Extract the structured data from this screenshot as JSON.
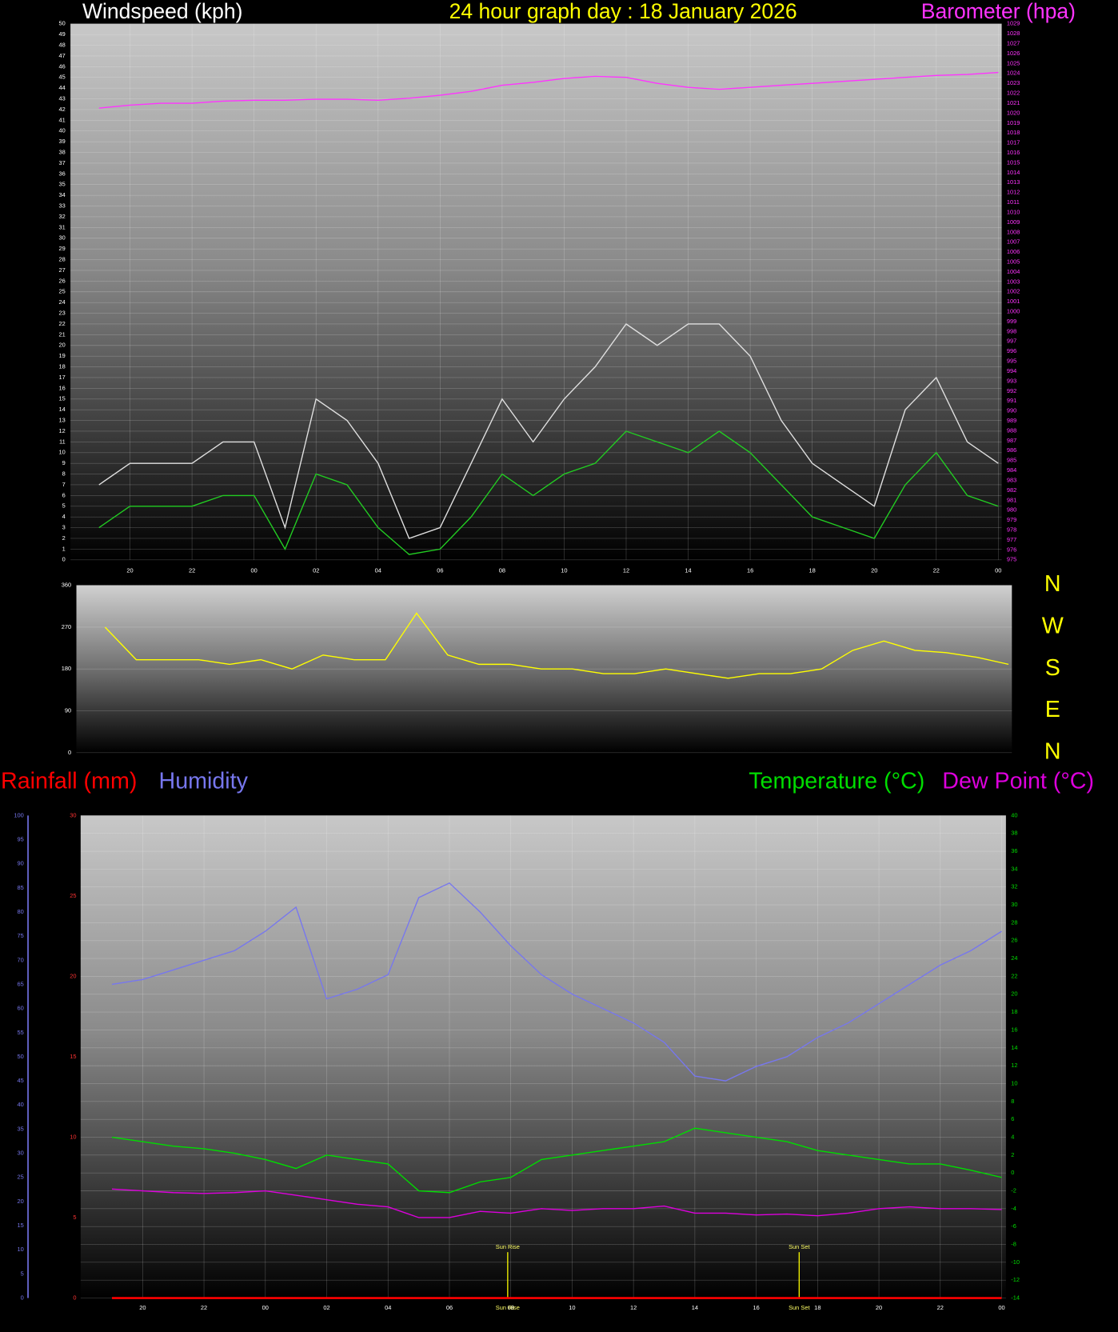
{
  "chart_data": [
    {
      "type": "line",
      "title": "24 hour graph day : 18 January 2026",
      "x": [
        19,
        20,
        21,
        22,
        23,
        24,
        25,
        26,
        27,
        28,
        29,
        30,
        31,
        32,
        33,
        34,
        35,
        36,
        37,
        38,
        39,
        40,
        41,
        42,
        43,
        44,
        45,
        46,
        47,
        48
      ],
      "xlim": [
        18.08,
        48.11
      ],
      "xticks": [
        20,
        22,
        {
          "value": 24,
          "label": "00"
        },
        {
          "value": 26,
          "label": "02"
        },
        {
          "value": 28,
          "label": "04"
        },
        {
          "value": 30,
          "label": "06"
        },
        {
          "value": 32,
          "label": "08"
        },
        {
          "value": 34,
          "label": "10"
        },
        {
          "value": 36,
          "label": "12"
        },
        {
          "value": 38,
          "label": "14"
        },
        {
          "value": 40,
          "label": "16"
        },
        {
          "value": 42,
          "label": "18"
        },
        {
          "value": 44,
          "label": "20"
        },
        {
          "value": 46,
          "label": "22"
        },
        {
          "value": 48,
          "label": "00"
        }
      ],
      "ylim": [
        0,
        50
      ],
      "yticks": [
        0,
        1,
        2,
        3,
        4,
        5,
        6,
        7,
        8,
        9,
        10,
        11,
        12,
        13,
        14,
        15,
        16,
        17,
        18,
        19,
        20,
        21,
        22,
        23,
        24,
        25,
        26,
        27,
        28,
        29,
        30,
        31,
        32,
        33,
        34,
        35,
        36,
        37,
        38,
        39,
        40,
        41,
        42,
        43,
        44,
        45,
        46,
        47,
        48,
        49,
        50
      ],
      "y2lim": [
        975,
        1029
      ],
      "y2ticks": [
        975,
        976,
        977,
        978,
        979,
        980,
        981,
        982,
        983,
        984,
        985,
        986,
        987,
        988,
        989,
        990,
        991,
        992,
        993,
        994,
        995,
        996,
        997,
        998,
        999,
        1000,
        1001,
        1002,
        1003,
        1004,
        1005,
        1006,
        1007,
        1008,
        1009,
        1010,
        1011,
        1012,
        1013,
        1014,
        1015,
        1016,
        1017,
        1018,
        1019,
        1020,
        1021,
        1022,
        1023,
        1024,
        1025,
        1026,
        1027,
        1028,
        1029
      ],
      "grid": true,
      "series": [
        {
          "name": "Windspeed (kph)",
          "color": "#e0e0e0",
          "values": [
            7,
            9,
            9,
            9,
            11,
            11,
            3,
            15,
            13,
            9,
            2,
            3,
            9,
            15,
            11,
            15,
            18,
            22,
            20,
            22,
            22,
            19,
            13,
            9,
            7,
            5,
            14,
            17,
            11,
            9
          ]
        },
        {
          "color": "#22cc22",
          "values": [
            3,
            5,
            5,
            5,
            6,
            6,
            1,
            8,
            7,
            3,
            0.5,
            1,
            4,
            8,
            6,
            8,
            9,
            12,
            11,
            10,
            12,
            10,
            7,
            4,
            3,
            2,
            7,
            10,
            6,
            5
          ]
        },
        {
          "name": "Barometer (hpa)",
          "color": "#ff33ff",
          "axis": "y2",
          "values": [
            1020.5,
            1020.8,
            1021,
            1021,
            1021.2,
            1021.3,
            1021.3,
            1021.4,
            1021.4,
            1021.3,
            1021.5,
            1021.8,
            1022.2,
            1022.8,
            1023.1,
            1023.5,
            1023.7,
            1023.6,
            1023,
            1022.6,
            1022.4,
            1022.6,
            1022.8,
            1023,
            1023.2,
            1023.4,
            1023.6,
            1023.8,
            1023.9,
            1024.1
          ]
        }
      ]
    },
    {
      "type": "line",
      "x": [
        19,
        20,
        21,
        22,
        23,
        24,
        25,
        26,
        27,
        28,
        29,
        30,
        31,
        32,
        33,
        34,
        35,
        36,
        37,
        38,
        39,
        40,
        41,
        42,
        43,
        44,
        45,
        46,
        47,
        48
      ],
      "xlim": [
        18.08,
        48.11
      ],
      "ylim": [
        0,
        360
      ],
      "yticks": [
        0,
        90,
        180,
        270,
        360
      ],
      "direction_labels": [
        "N",
        "E",
        "S",
        "W",
        "N"
      ],
      "grid": true,
      "series": [
        {
          "color": "#ffff00",
          "values": [
            270,
            200,
            200,
            200,
            190,
            200,
            180,
            210,
            200,
            200,
            300,
            210,
            190,
            190,
            180,
            180,
            170,
            170,
            180,
            170,
            160,
            170,
            170,
            180,
            220,
            240,
            220,
            215,
            205,
            190
          ]
        }
      ]
    },
    {
      "type": "line",
      "x": [
        19,
        20,
        21,
        22,
        23,
        24,
        25,
        26,
        27,
        28,
        29,
        30,
        31,
        32,
        33,
        34,
        35,
        36,
        37,
        38,
        39,
        40,
        41,
        42,
        43,
        44,
        45,
        46,
        47,
        48
      ],
      "xlim": [
        17.98,
        48.14
      ],
      "xticks": [
        20,
        22,
        {
          "value": 24,
          "label": "00"
        },
        {
          "value": 26,
          "label": "02"
        },
        {
          "value": 28,
          "label": "04"
        },
        {
          "value": 30,
          "label": "06"
        },
        {
          "value": 32,
          "label": "08"
        },
        {
          "value": 34,
          "label": "10"
        },
        {
          "value": 36,
          "label": "12"
        },
        {
          "value": 38,
          "label": "14"
        },
        {
          "value": 40,
          "label": "16"
        },
        {
          "value": 42,
          "label": "18"
        },
        {
          "value": 44,
          "label": "20"
        },
        {
          "value": 46,
          "label": "22"
        },
        {
          "value": 48,
          "label": "00"
        }
      ],
      "ylim": [
        0,
        30
      ],
      "yticks": [
        0,
        5,
        10,
        15,
        20,
        25,
        30
      ],
      "y3lim": [
        0,
        100
      ],
      "y3ticks": [
        0,
        5,
        10,
        15,
        20,
        25,
        30,
        35,
        40,
        45,
        50,
        55,
        60,
        65,
        70,
        75,
        80,
        85,
        90,
        95,
        100
      ],
      "y2lim": [
        -14,
        40
      ],
      "y2ticks": [
        -14,
        -12,
        -10,
        -8,
        -6,
        -4,
        -2,
        0,
        2,
        4,
        6,
        8,
        10,
        12,
        14,
        16,
        18,
        20,
        22,
        24,
        26,
        28,
        30,
        32,
        34,
        36,
        38,
        40
      ],
      "grid": true,
      "annotations": [
        {
          "text": "Sun Rise",
          "x": 31.9
        },
        {
          "text": "Sun Set",
          "x": 41.4
        }
      ],
      "series": [
        {
          "name": "Rainfall (mm)",
          "color": "#ff0000",
          "values": [
            0,
            0,
            0,
            0,
            0,
            0,
            0,
            0,
            0,
            0,
            0,
            0,
            0,
            0,
            0,
            0,
            0,
            0,
            0,
            0,
            0,
            0,
            0,
            0,
            0,
            0,
            0,
            0,
            0,
            0
          ]
        },
        {
          "name": "Humidity",
          "color": "#7777ee",
          "axis": "y3",
          "values": [
            65,
            66,
            68,
            70,
            72,
            76,
            81,
            62,
            64,
            67,
            83,
            86,
            80,
            73,
            67,
            63,
            60,
            57,
            53,
            46,
            45,
            48,
            50,
            54,
            57,
            61,
            65,
            69,
            72,
            76
          ]
        },
        {
          "name": "Temperature (°C)",
          "color": "#00dd00",
          "axis": "y2",
          "values": [
            4,
            3.5,
            3,
            2.7,
            2.2,
            1.5,
            0.5,
            2,
            1.5,
            1,
            -2,
            -2.2,
            -1,
            -0.5,
            1.5,
            2,
            2.5,
            3,
            3.5,
            5,
            4.5,
            4,
            3.5,
            2.5,
            2,
            1.5,
            1,
            1,
            0.3,
            -0.5
          ]
        },
        {
          "name": "Dew Point (°C)",
          "color": "#dd00dd",
          "axis": "y2",
          "values": [
            -1.8,
            -2,
            -2.2,
            -2.3,
            -2.2,
            -2,
            -2.5,
            -3,
            -3.5,
            -3.8,
            -5,
            -5,
            -4.3,
            -4.5,
            -4,
            -4.2,
            -4,
            -4,
            -3.7,
            -4.5,
            -4.5,
            -4.7,
            -4.6,
            -4.8,
            -4.5,
            -4,
            -3.8,
            -4,
            -4,
            -4.1
          ]
        }
      ]
    }
  ]
}
